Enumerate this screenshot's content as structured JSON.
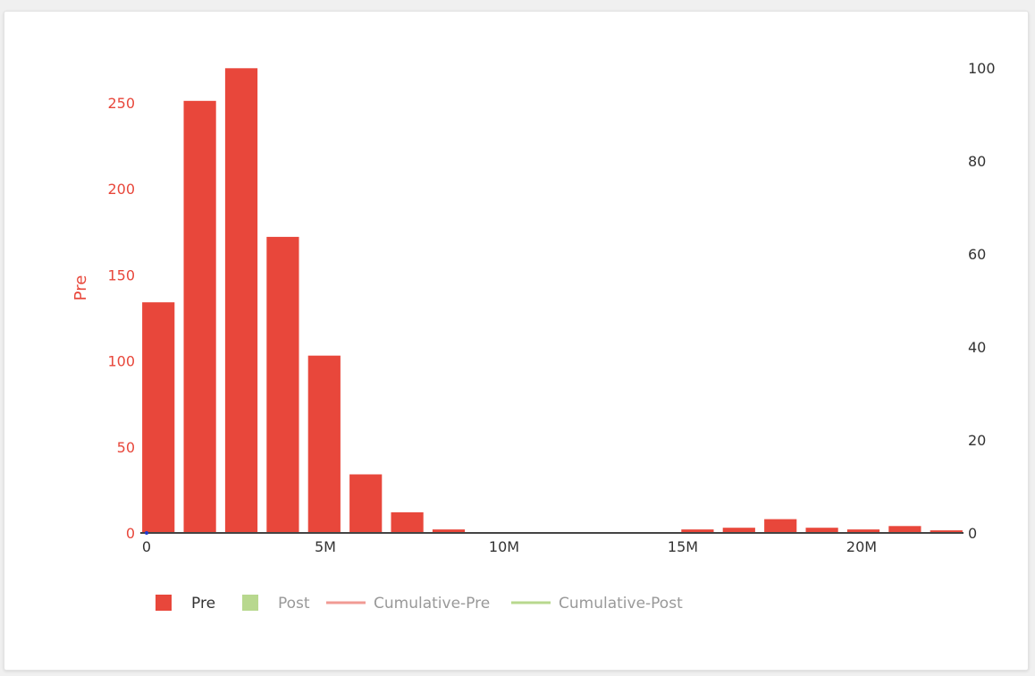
{
  "chart_data": {
    "type": "bar",
    "ylabel": "Pre",
    "xlim": [
      0,
      23000000
    ],
    "ylim": [
      0,
      280
    ],
    "y2lim": [
      0,
      100
    ],
    "x_ticks": [
      {
        "value": 0,
        "label": "0"
      },
      {
        "value": 5000000,
        "label": "5M"
      },
      {
        "value": 10000000,
        "label": "10M"
      },
      {
        "value": 15000000,
        "label": "15M"
      },
      {
        "value": 20000000,
        "label": "20M"
      }
    ],
    "y_ticks": [
      {
        "value": 0,
        "label": "0"
      },
      {
        "value": 50,
        "label": "50"
      },
      {
        "value": 100,
        "label": "100"
      },
      {
        "value": 150,
        "label": "150"
      },
      {
        "value": 200,
        "label": "200"
      },
      {
        "value": 250,
        "label": "250"
      }
    ],
    "y2_ticks": [
      {
        "value": 0,
        "label": "0"
      },
      {
        "value": 20,
        "label": "20"
      },
      {
        "value": 40,
        "label": "40"
      },
      {
        "value": 60,
        "label": "60"
      },
      {
        "value": 80,
        "label": "80"
      },
      {
        "value": 100,
        "label": "100"
      }
    ],
    "bin_width": 1160000,
    "bar_fraction": 0.78,
    "series": [
      {
        "name": "Pre",
        "color": "#e8473b",
        "x": [
          330000,
          1490000,
          2650000,
          3810000,
          4970000,
          6130000,
          7290000,
          8450000,
          9610000,
          10770000,
          11930000,
          13090000,
          14250000,
          15410000,
          16570000,
          17730000,
          18890000,
          20050000,
          21210000,
          22370000
        ],
        "values": [
          134,
          251,
          270,
          172,
          103,
          34,
          12,
          2,
          0,
          0,
          0,
          0,
          0,
          2,
          3,
          8,
          3,
          2,
          4,
          1.5
        ]
      }
    ],
    "legend": [
      {
        "label": "Pre",
        "symbol": "square",
        "color": "#e8473b",
        "visible": true
      },
      {
        "label": "Post",
        "symbol": "square",
        "color": "#b8d88e",
        "visible": false
      },
      {
        "label": "Cumulative-Pre",
        "symbol": "line",
        "color": "#f19a94",
        "visible": false
      },
      {
        "label": "Cumulative-Post",
        "symbol": "line",
        "color": "#b8d88e",
        "visible": false
      }
    ],
    "legend_position": "bottom-left",
    "grid": false
  }
}
